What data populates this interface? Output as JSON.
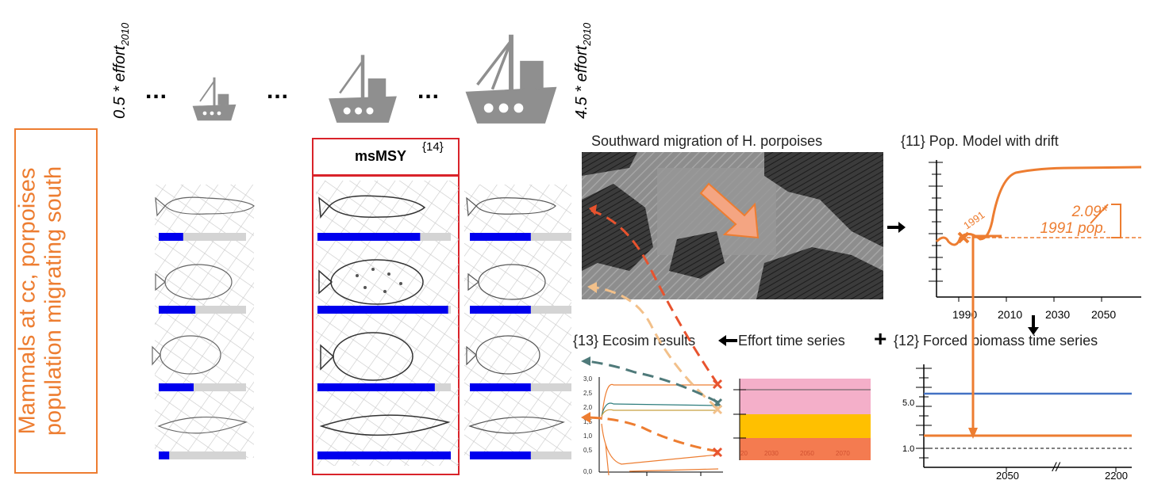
{
  "effort_labels": {
    "low": {
      "prefix": "0.5 * ",
      "word": "effort",
      "sub": "2010"
    },
    "high": {
      "prefix": "4.5 * ",
      "word": "effort",
      "sub": "2010"
    }
  },
  "ellipsis": "...",
  "side_label": {
    "line1": "Mammals at cc, porpoises",
    "line2": "population migrating south"
  },
  "msmsy": {
    "label": "msMSY",
    "ref": "{14}"
  },
  "map_title": "Southward migration of H. porpoises",
  "pop_model": {
    "title": "{11} Pop. Model with drift",
    "x_ticks": [
      "1990",
      "2010",
      "2030",
      "2050"
    ],
    "marker_label": "1991",
    "annotation_line1": "2.09*",
    "annotation_line2": "1991 pop."
  },
  "ecosim": {
    "title": "{13} Ecosim results",
    "y_ticks": [
      "3,0",
      "2,5",
      "2,0",
      "1,5",
      "1,0",
      "0,5",
      "0,0"
    ]
  },
  "effort_ts": {
    "title": "Effort time series",
    "x_ticks": [
      "20",
      "2030",
      "2050",
      "2070"
    ]
  },
  "plus": "+",
  "forced": {
    "title": "{12} Forced biomass time series",
    "y_ticks": [
      "5.0",
      "1.0"
    ],
    "x_ticks": [
      "2050",
      "2200"
    ],
    "break_mark": "//"
  },
  "colors": {
    "orange": "#ED7D31",
    "red": "#d9232a",
    "blue": "#0000EE",
    "grey_bar": "#d4d4d4",
    "boat": "#8f8f8f"
  },
  "bars": {
    "col1": [
      0.28,
      0.42,
      0.4,
      0.12
    ],
    "col2": [
      0.77,
      0.98,
      0.88,
      1.0
    ],
    "col3": [
      0.6,
      0.6,
      0.6,
      0.6
    ]
  }
}
